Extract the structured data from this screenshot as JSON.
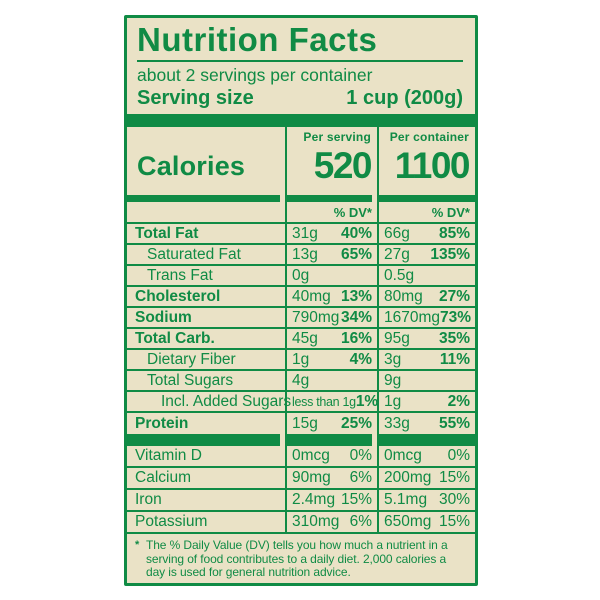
{
  "colors": {
    "label_green": "#108B45",
    "label_background_cream": "#EAE2C6",
    "page_background": "#FFFFFF"
  },
  "header": {
    "title": "Nutrition Facts",
    "servings_per_container": "about 2 servings per container",
    "serving_size_label": "Serving size",
    "serving_size_value": "1 cup (200g)"
  },
  "calories": {
    "label": "Calories",
    "per_serving_header": "Per serving",
    "per_serving_value": "520",
    "per_container_header": "Per container",
    "per_container_value": "1100",
    "dv_header": "% DV*"
  },
  "nutrients": [
    {
      "name": "Total Fat",
      "per_serving_amount": "31g",
      "per_serving_dv": "40%",
      "per_container_amount": "66g",
      "per_container_dv": "85%"
    },
    {
      "name": "Saturated Fat",
      "per_serving_amount": "13g",
      "per_serving_dv": "65%",
      "per_container_amount": "27g",
      "per_container_dv": "135%"
    },
    {
      "name": "Trans Fat",
      "per_serving_amount": "0g",
      "per_serving_dv": "",
      "per_container_amount": "0.5g",
      "per_container_dv": ""
    },
    {
      "name": "Cholesterol",
      "per_serving_amount": "40mg",
      "per_serving_dv": "13%",
      "per_container_amount": "80mg",
      "per_container_dv": "27%"
    },
    {
      "name": "Sodium",
      "per_serving_amount": "790mg",
      "per_serving_dv": "34%",
      "per_container_amount": "1670mg",
      "per_container_dv": "73%"
    },
    {
      "name": "Total Carb.",
      "per_serving_amount": "45g",
      "per_serving_dv": "16%",
      "per_container_amount": "95g",
      "per_container_dv": "35%"
    },
    {
      "name": "Dietary Fiber",
      "per_serving_amount": "1g",
      "per_serving_dv": "4%",
      "per_container_amount": "3g",
      "per_container_dv": "11%"
    },
    {
      "name": "Total Sugars",
      "per_serving_amount": "4g",
      "per_serving_dv": "",
      "per_container_amount": "9g",
      "per_container_dv": ""
    },
    {
      "name": "Incl. Added Sugars",
      "per_serving_amount": "less than 1g",
      "per_serving_dv": "1%",
      "per_container_amount": "1g",
      "per_container_dv": "2%"
    },
    {
      "name": "Protein",
      "per_serving_amount": "15g",
      "per_serving_dv": "25%",
      "per_container_amount": "33g",
      "per_container_dv": "55%"
    }
  ],
  "micronutrients": [
    {
      "name": "Vitamin D",
      "per_serving_amount": "0mcg",
      "per_serving_dv": "0%",
      "per_container_amount": "0mcg",
      "per_container_dv": "0%"
    },
    {
      "name": "Calcium",
      "per_serving_amount": "90mg",
      "per_serving_dv": "6%",
      "per_container_amount": "200mg",
      "per_container_dv": "15%"
    },
    {
      "name": "Iron",
      "per_serving_amount": "2.4mg",
      "per_serving_dv": "15%",
      "per_container_amount": "5.1mg",
      "per_container_dv": "30%"
    },
    {
      "name": "Potassium",
      "per_serving_amount": "310mg",
      "per_serving_dv": "6%",
      "per_container_amount": "650mg",
      "per_container_dv": "15%"
    }
  ],
  "footnote": {
    "marker": "*",
    "text": "The % Daily Value (DV) tells you how much a nutrient in a serving of food contributes to a daily diet. 2,000 calories a day is used for general nutrition advice."
  }
}
